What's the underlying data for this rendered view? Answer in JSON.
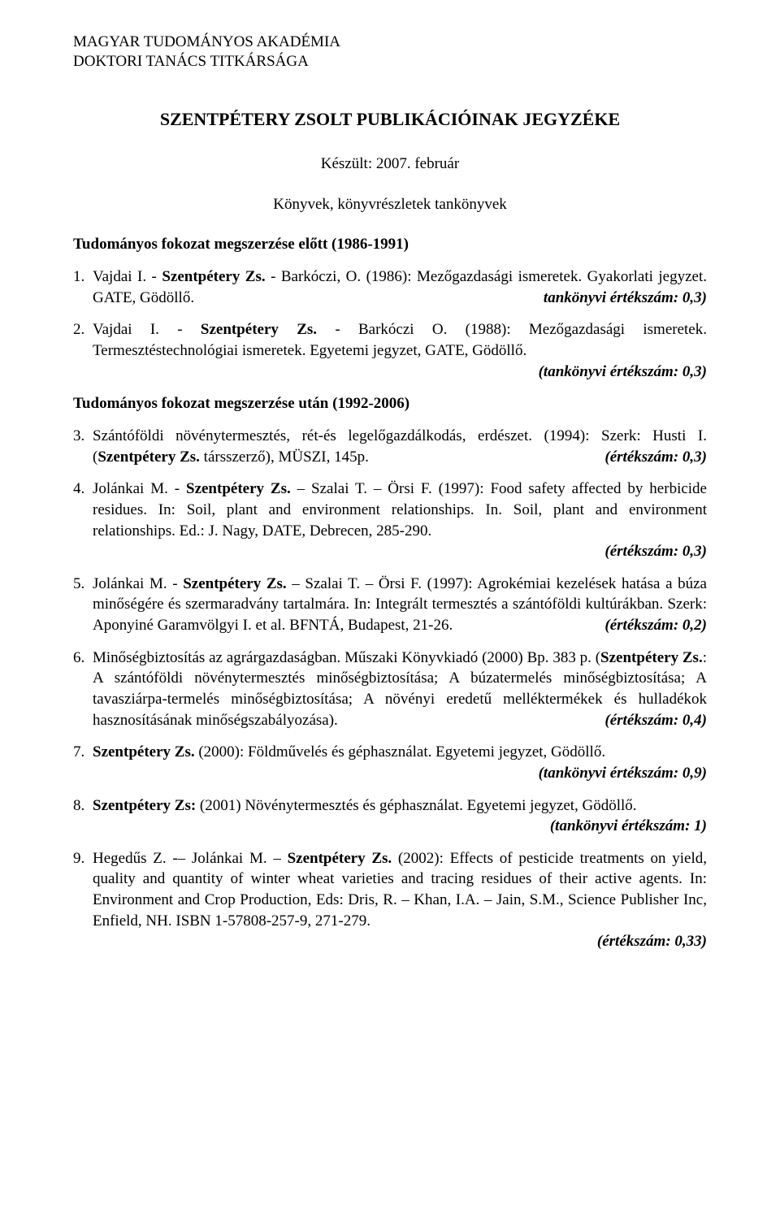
{
  "header": {
    "line1": "MAGYAR TUDOMÁNYOS AKADÉMIA",
    "line2": "DOKTORI TANÁCS TITKÁRSÁGA"
  },
  "title": "SZENTPÉTERY ZSOLT PUBLIKÁCIÓINAK JEGYZÉKE",
  "date_line": "Készült: 2007. február",
  "books_line": "Könyvek, könyvrészletek tankönyvek",
  "section_before": "Tudományos fokozat megszerzése előtt (1986-1991)",
  "section_after": "Tudományos fokozat megszerzése után (1992-2006)",
  "items": {
    "i1": {
      "num": "1.",
      "text_pre": "Vajdai I. - ",
      "author_bold": "Szentpétery Zs.",
      "text_mid": " - Barkóczi, O. (1986): Mezőgazdasági ismeretek. Gyakorlati jegyzet. GATE, Gödöllő.",
      "score": "tankönyvi értékszám: 0,3)"
    },
    "i2": {
      "num": "2.",
      "text_pre": "Vajdai I. - ",
      "author_bold": "Szentpétery Zs.",
      "text_mid": " - Barkóczi O. (1988): Mezőgazdasági ismeretek. Termesztéstechnológiai ismeretek. Egyetemi jegyzet, GATE, Gödöllő.",
      "score": "(tankönyvi értékszám: 0,3)"
    },
    "i3": {
      "num": "3.",
      "text_a": "Szántóföldi növénytermesztés, rét-és legelőgazdálkodás, erdészet. (1994): Szerk: Husti I. (",
      "author_bold": "Szentpétery Zs.",
      "text_b": " társszerző), MÜSZI, 145p.",
      "score": "(értékszám: 0,3)"
    },
    "i4": {
      "num": "4.",
      "text_a": "Jolánkai M. - ",
      "author_bold": "Szentpétery Zs.",
      "text_b": " – Szalai T. – Örsi F. (1997): Food safety affected by herbicide residues. In: Soil, plant and environment relationships. In. Soil, plant and environment relationships. Ed.: J. Nagy, DATE, Debrecen, 285-290.",
      "score": "(értékszám: 0,3)"
    },
    "i5": {
      "num": "5.",
      "text_a": "Jolánkai M. - ",
      "author_bold": "Szentpétery Zs.",
      "text_b": " – Szalai T. – Örsi F. (1997): Agrokémiai kezelések hatása a búza minőségére és szermaradvány tartalmára. In: Integrált termesztés a szántóföldi kultúrákban. Szerk: Aponyiné Garamvölgyi I. et al. BFNTÁ, Budapest, 21-26.",
      "score": "(értékszám: 0,2)"
    },
    "i6": {
      "num": "6.",
      "text_a": "Minőségbiztosítás az agrárgazdaságban. Műszaki Könyvkiadó (2000) Bp. 383 p. (",
      "author_bold": "Szentpétery Zs.",
      "text_b": ": A szántóföldi növénytermesztés minőségbiztosítása; A búzatermelés minőségbiztosítása; A tavasziárpa-termelés minőségbiztosítása; A növényi eredetű melléktermékek és hulladékok hasznosításának minőségszabályozása).",
      "score": "(értékszám: 0,4)"
    },
    "i7": {
      "num": "7.",
      "author_bold": "Szentpétery Zs.",
      "text_b": " (2000): Földművelés és géphasználat. Egyetemi jegyzet, Gödöllő.",
      "score": "(tankönyvi értékszám: 0,9)"
    },
    "i8": {
      "num": "8.",
      "author_bold": "Szentpétery Zs:",
      "text_b": " (2001) Növénytermesztés és géphasználat. Egyetemi jegyzet, Gödöllő.",
      "score": "(tankönyvi értékszám: 1)"
    },
    "i9": {
      "num": "9.",
      "text_a": "Hegedűs Z. -– Jolánkai M. – ",
      "author_bold": "Szentpétery Zs.",
      "text_b": " (2002): Effects of pesticide treatments on yield, quality and quantity of winter wheat varieties and tracing residues of their active agents. In: Environment and Crop Production, Eds: Dris, R. – Khan, I.A. – Jain, S.M., Science Publisher Inc, Enfield, NH. ISBN 1-57808-257-9, 271-279.",
      "score": "(értékszám: 0,33)"
    }
  }
}
